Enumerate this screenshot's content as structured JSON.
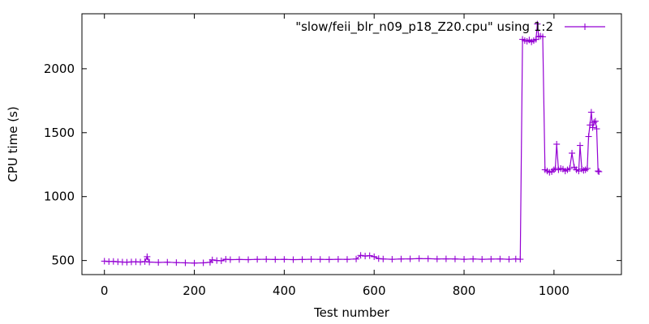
{
  "chart_data": {
    "type": "line",
    "title": "",
    "xlabel": "Test number",
    "ylabel": "CPU time (s)",
    "xlim": [
      -50,
      1150
    ],
    "ylim": [
      390,
      2430
    ],
    "xticks": [
      0,
      200,
      400,
      600,
      800,
      1000
    ],
    "yticks": [
      500,
      1000,
      1500,
      2000
    ],
    "xtick_labels": [
      "0",
      "200",
      "400",
      "600",
      "800",
      "1000"
    ],
    "ytick_labels": [
      "500",
      "1000",
      "1500",
      "2000"
    ],
    "grid": false,
    "legend_position": "top-right",
    "colors": {
      "series": "#9400d3",
      "axes": "#000000",
      "background": "#ffffff"
    },
    "series": [
      {
        "name": "\"slow/feii_blr_n09_p18_Z20.cpu\" using 1:2",
        "marker": "plus",
        "x": [
          0,
          10,
          20,
          30,
          40,
          50,
          60,
          70,
          80,
          90,
          95,
          100,
          120,
          140,
          160,
          180,
          200,
          220,
          235,
          240,
          250,
          260,
          270,
          280,
          300,
          320,
          340,
          360,
          380,
          400,
          420,
          440,
          460,
          480,
          500,
          520,
          540,
          560,
          570,
          580,
          590,
          600,
          610,
          620,
          640,
          660,
          680,
          700,
          720,
          740,
          760,
          780,
          800,
          820,
          840,
          860,
          880,
          900,
          915,
          925,
          930,
          935,
          940,
          945,
          950,
          955,
          960,
          963,
          966,
          970,
          975,
          980,
          985,
          990,
          995,
          1000,
          1003,
          1006,
          1010,
          1015,
          1020,
          1025,
          1030,
          1035,
          1040,
          1045,
          1050,
          1055,
          1058,
          1062,
          1066,
          1070,
          1074,
          1077,
          1080,
          1083,
          1086,
          1089,
          1092,
          1095,
          1098,
          1100
        ],
        "y": [
          495,
          492,
          493,
          490,
          488,
          487,
          489,
          490,
          488,
          492,
          530,
          488,
          485,
          487,
          484,
          482,
          480,
          482,
          486,
          505,
          500,
          498,
          510,
          507,
          508,
          507,
          509,
          510,
          508,
          509,
          507,
          508,
          510,
          509,
          508,
          510,
          509,
          512,
          540,
          535,
          538,
          530,
          515,
          512,
          510,
          512,
          513,
          515,
          514,
          512,
          513,
          512,
          510,
          512,
          510,
          511,
          512,
          510,
          512,
          510,
          2230,
          2220,
          2215,
          2225,
          2210,
          2220,
          2230,
          2350,
          2250,
          2255,
          2250,
          1210,
          1200,
          1190,
          1195,
          1210,
          1220,
          1410,
          1210,
          1220,
          1215,
          1200,
          1210,
          1220,
          1340,
          1230,
          1210,
          1200,
          1400,
          1215,
          1205,
          1210,
          1220,
          1470,
          1560,
          1660,
          1540,
          1580,
          1590,
          1530,
          1200,
          1195
        ]
      }
    ]
  }
}
